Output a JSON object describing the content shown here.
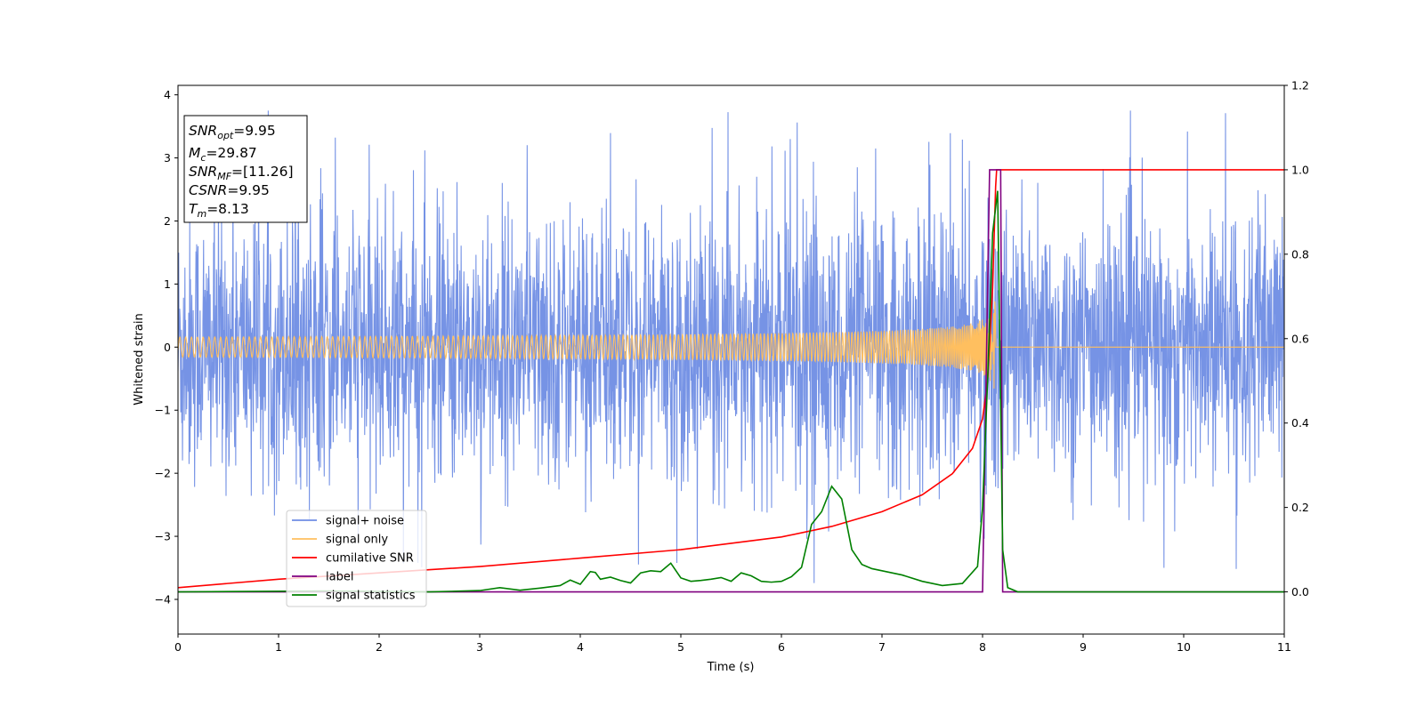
{
  "chart_data": {
    "type": "line",
    "xlabel": "Time (s)",
    "ylabel": "Whitened strain",
    "xlim": [
      0,
      11
    ],
    "ylim": [
      -4.55,
      4.15
    ],
    "y2lim": [
      -0.1,
      1.2
    ],
    "x_ticks": [
      "0",
      "1",
      "2",
      "3",
      "4",
      "5",
      "6",
      "7",
      "8",
      "9",
      "10",
      "11"
    ],
    "y_ticks": [
      "4",
      "3",
      "2",
      "1",
      "0",
      "−1",
      "−2",
      "−3",
      "−4"
    ],
    "y2_ticks": [
      "0.0",
      "0.2",
      "0.4",
      "0.6",
      "0.8",
      "1.0",
      "1.2"
    ],
    "legend_position": "lower-left",
    "info_box": {
      "position": "top-left",
      "lines": [
        {
          "base": "SNR",
          "sub": "opt",
          "value": "=9.95"
        },
        {
          "base": "M",
          "sub": "c",
          "value": "=29.87"
        },
        {
          "base": "SNR",
          "sub": "MF",
          "value": "=[11.26]"
        },
        {
          "base": "CSNR",
          "sub": "",
          "value": "=9.95"
        },
        {
          "base": "T",
          "sub": "m",
          "value": "=8.13"
        }
      ]
    },
    "series": [
      {
        "name": "signal+ noise",
        "color": "#6f8de4",
        "axis": "left",
        "kind": "noise",
        "noise_sigma": 1.15,
        "noise_peak": 3.75
      },
      {
        "name": "signal only",
        "color": "#ffbf5f",
        "axis": "left",
        "kind": "chirp",
        "merger_time": 8.13,
        "peak_amplitude": 0.85
      },
      {
        "name": "cumilative SNR",
        "color": "#ff0000",
        "axis": "right",
        "x": [
          0,
          1,
          2,
          3,
          4,
          5,
          6,
          6.5,
          7,
          7.4,
          7.7,
          7.9,
          8.0,
          8.05,
          8.1,
          8.13,
          8.14,
          11
        ],
        "values": [
          0.01,
          0.03,
          0.045,
          0.06,
          0.08,
          0.1,
          0.13,
          0.155,
          0.19,
          0.23,
          0.28,
          0.34,
          0.41,
          0.5,
          0.72,
          0.96,
          1.0,
          1.0
        ]
      },
      {
        "name": "label",
        "color": "#800080",
        "axis": "right",
        "x": [
          0,
          8.0,
          8.07,
          8.18,
          8.2,
          11
        ],
        "values": [
          0.0,
          0.0,
          1.0,
          1.0,
          0.0,
          0.0
        ]
      },
      {
        "name": "signal statistics",
        "color": "#008000",
        "axis": "right",
        "x": [
          0,
          1.5,
          2.5,
          3.0,
          3.2,
          3.4,
          3.6,
          3.8,
          3.9,
          4.0,
          4.1,
          4.15,
          4.2,
          4.3,
          4.4,
          4.5,
          4.6,
          4.7,
          4.8,
          4.9,
          5.0,
          5.1,
          5.2,
          5.3,
          5.4,
          5.5,
          5.6,
          5.7,
          5.8,
          5.9,
          6.0,
          6.1,
          6.2,
          6.3,
          6.4,
          6.5,
          6.6,
          6.7,
          6.8,
          6.9,
          7.0,
          7.2,
          7.4,
          7.6,
          7.8,
          7.95,
          8.0,
          8.05,
          8.1,
          8.15,
          8.2,
          8.25,
          8.35,
          11
        ],
        "values": [
          0.0,
          0.002,
          0.0,
          0.003,
          0.01,
          0.004,
          0.009,
          0.015,
          0.028,
          0.018,
          0.048,
          0.046,
          0.03,
          0.035,
          0.027,
          0.021,
          0.045,
          0.05,
          0.048,
          0.068,
          0.033,
          0.025,
          0.027,
          0.03,
          0.034,
          0.025,
          0.045,
          0.038,
          0.025,
          0.023,
          0.025,
          0.036,
          0.058,
          0.16,
          0.19,
          0.25,
          0.22,
          0.1,
          0.065,
          0.055,
          0.05,
          0.04,
          0.025,
          0.015,
          0.02,
          0.06,
          0.2,
          0.5,
          0.85,
          0.95,
          0.1,
          0.01,
          0.0,
          0.0
        ]
      }
    ]
  }
}
